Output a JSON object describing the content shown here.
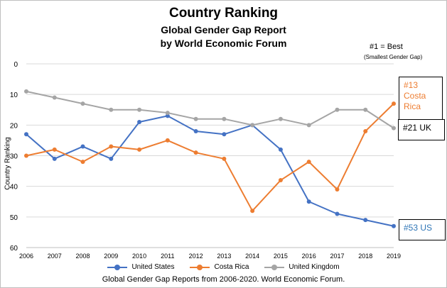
{
  "chart_data": {
    "type": "line",
    "title": "Country Ranking",
    "subtitle_lines": [
      "Global Gender Gap Report",
      "by World Economic Forum"
    ],
    "note": "#1 = Best",
    "note_sub": "(Smallest Gender Gap)",
    "ylabel": "Country Ranking",
    "xlabel": "",
    "x": [
      "2006",
      "2007",
      "2008",
      "2009",
      "2010",
      "2011",
      "2012",
      "2013",
      "2014",
      "2015",
      "2016",
      "2017",
      "2018",
      "2019"
    ],
    "ylim": [
      0,
      60
    ],
    "y_reversed": true,
    "y_ticks": [
      0,
      10,
      20,
      30,
      40,
      50,
      60
    ],
    "grid": true,
    "legend_position": "bottom",
    "series": [
      {
        "name": "United States",
        "color": "#4472C4",
        "values": [
          23,
          31,
          27,
          31,
          19,
          17,
          22,
          23,
          20,
          28,
          45,
          49,
          51,
          53
        ]
      },
      {
        "name": "Costa Rica",
        "color": "#ED7D31",
        "values": [
          30,
          28,
          32,
          27,
          28,
          25,
          29,
          31,
          48,
          38,
          32,
          41,
          22,
          13
        ]
      },
      {
        "name": "United Kingdom",
        "color": "#A5A5A5",
        "values": [
          9,
          11,
          13,
          15,
          15,
          16,
          18,
          18,
          20,
          18,
          20,
          15,
          15,
          21
        ]
      }
    ],
    "annotations": {
      "costa_rica": [
        "#13",
        "Costa",
        "Rica"
      ],
      "uk": "#21 UK",
      "us": "#53 US"
    },
    "footer": "Global Gender Gap Reports from 2006-2020. World Economic Forum."
  }
}
